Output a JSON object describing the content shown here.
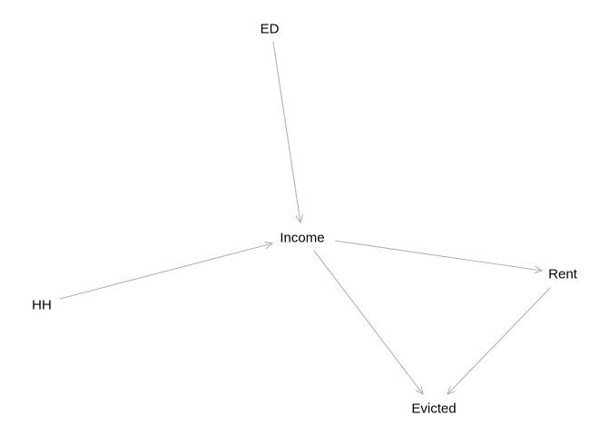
{
  "diagram": {
    "type": "directed-acyclic-graph",
    "edge_color": "#b3b3b3",
    "label_color": "#000000",
    "nodes": [
      {
        "id": "ED",
        "label": "ED"
      },
      {
        "id": "Income",
        "label": "Income"
      },
      {
        "id": "HH",
        "label": "HH"
      },
      {
        "id": "Rent",
        "label": "Rent"
      },
      {
        "id": "Evicted",
        "label": "Evicted"
      }
    ],
    "edges": [
      {
        "from": "ED",
        "to": "Income"
      },
      {
        "from": "HH",
        "to": "Income"
      },
      {
        "from": "Income",
        "to": "Rent"
      },
      {
        "from": "Income",
        "to": "Evicted"
      },
      {
        "from": "Rent",
        "to": "Evicted"
      }
    ]
  }
}
